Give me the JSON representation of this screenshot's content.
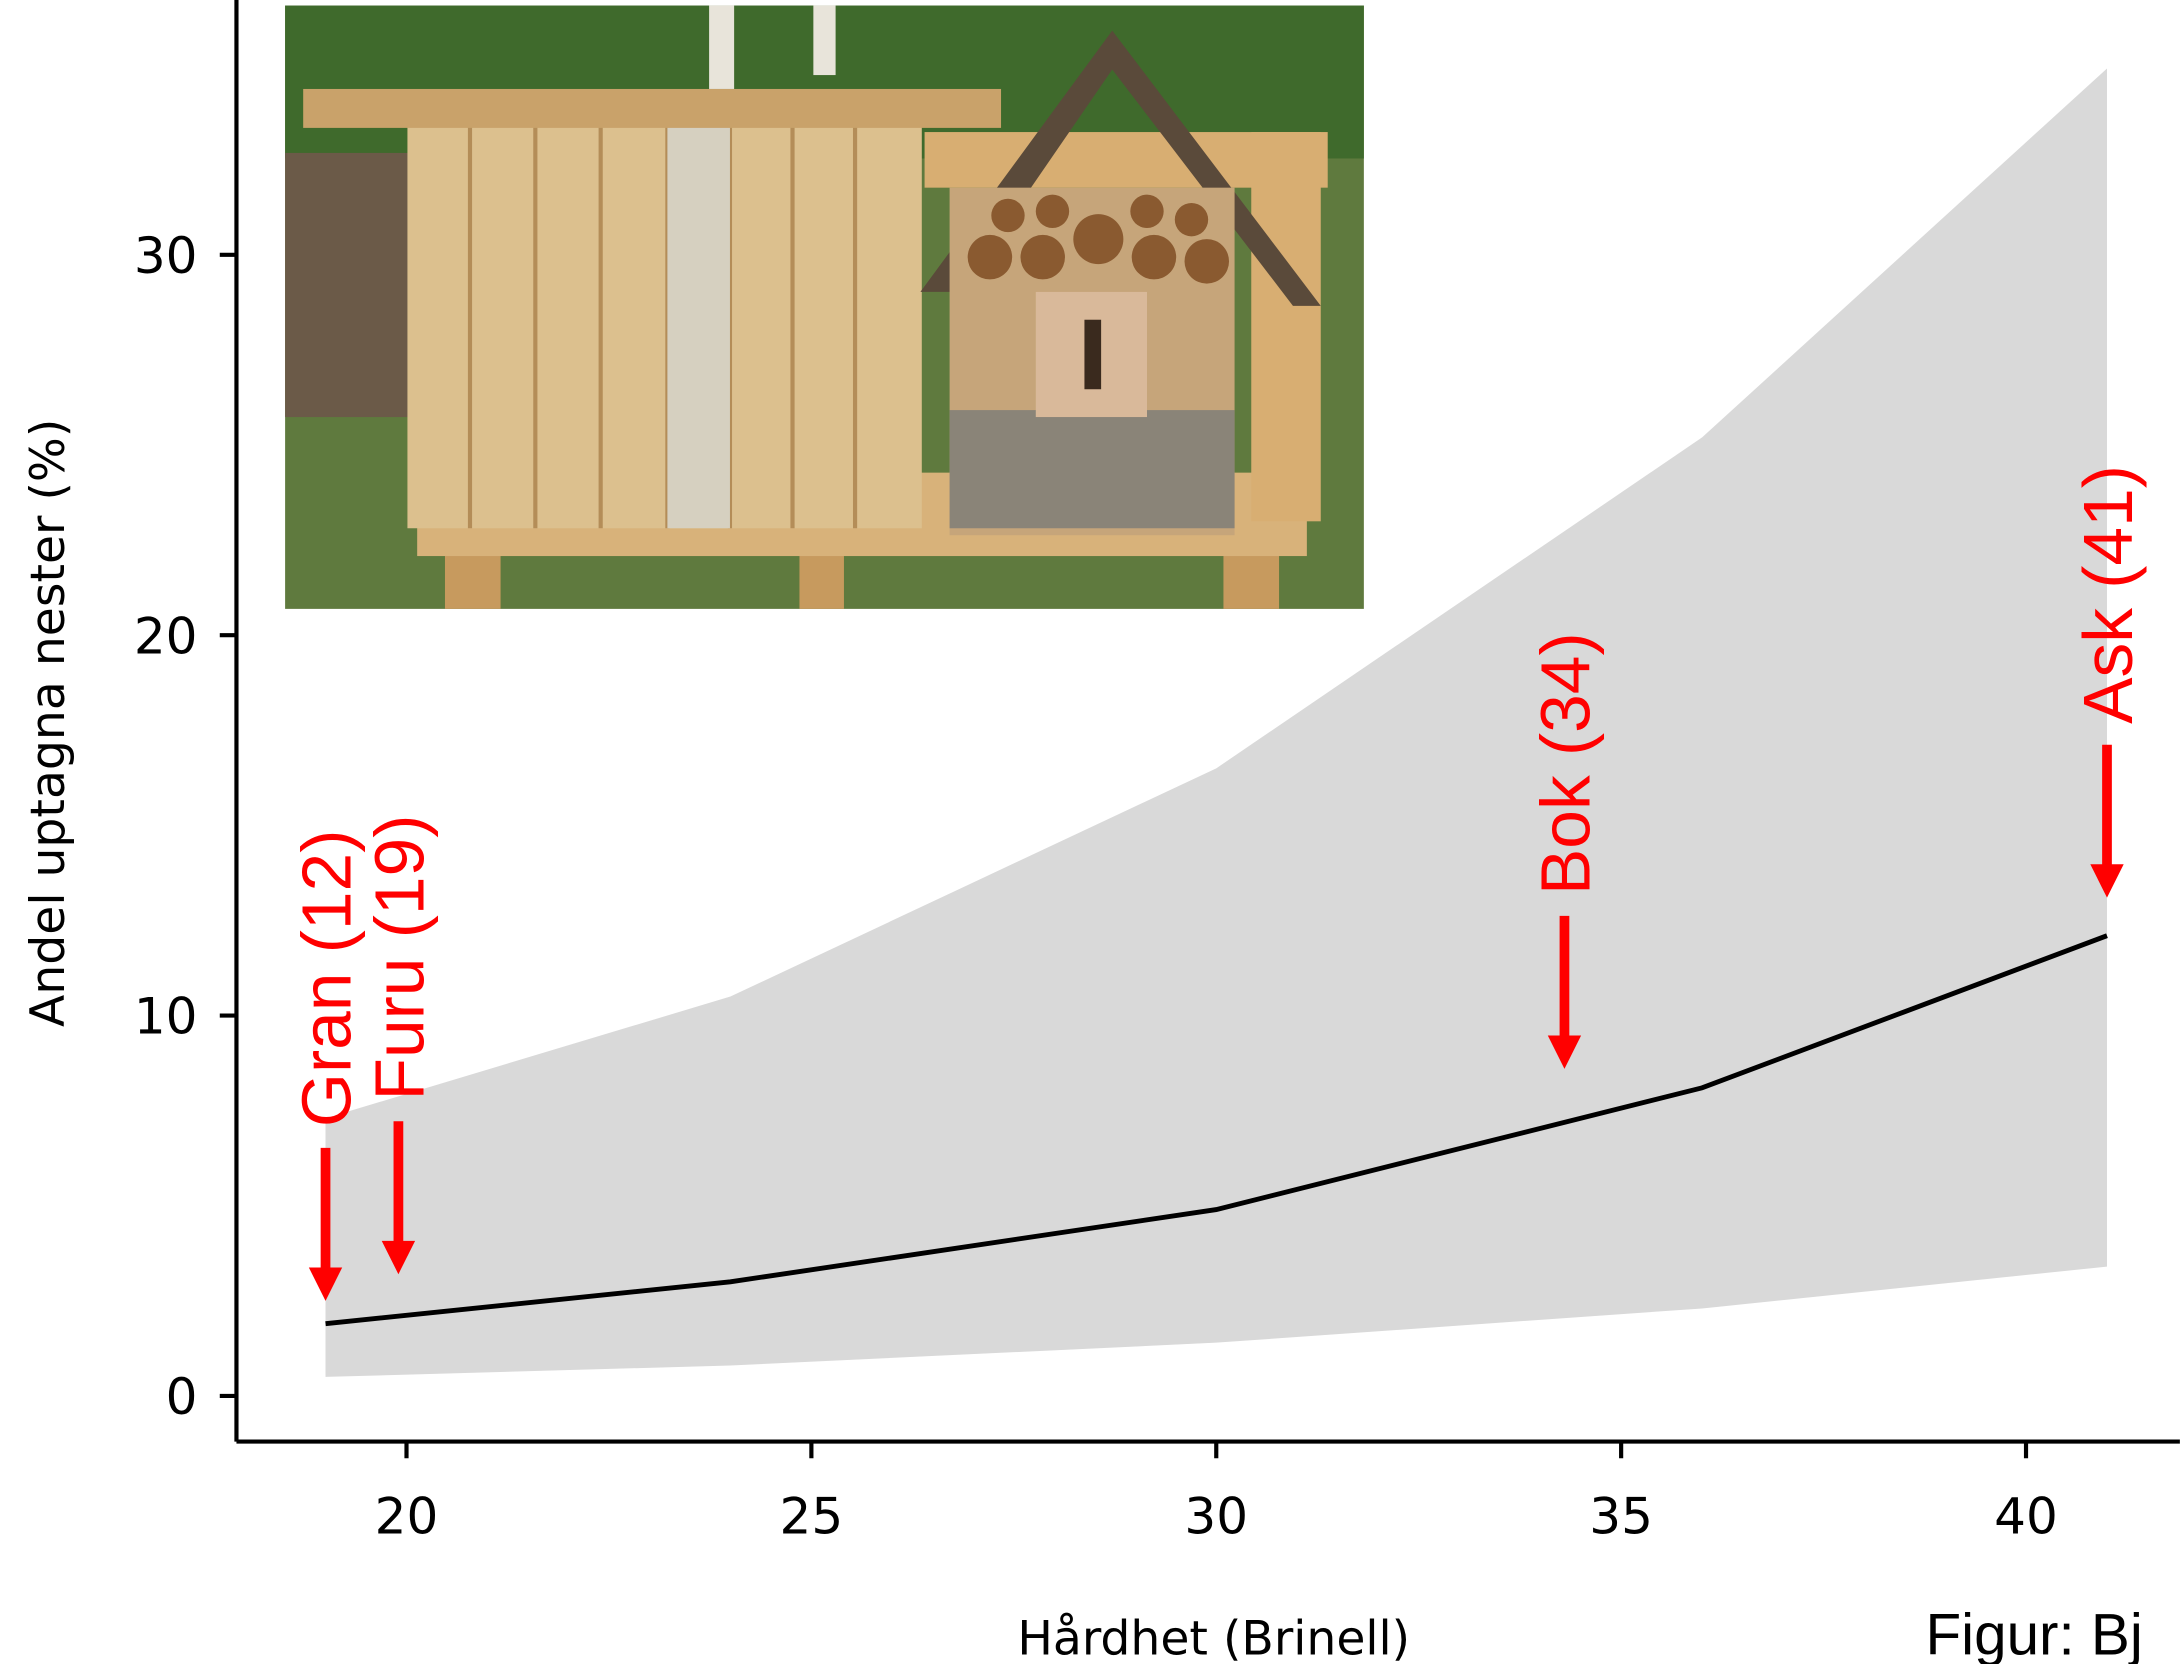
{
  "chart_data": {
    "type": "line",
    "xlabel": "Hårdhet (Brinell)",
    "ylabel": "Andel uptagna nester (%)",
    "caption": "Figur: Bj",
    "x": [
      19,
      24,
      30,
      36,
      41
    ],
    "values": [
      1.9,
      3.0,
      4.9,
      8.1,
      12.1
    ],
    "upper": [
      7.3,
      10.5,
      16.5,
      25.2,
      34.9
    ],
    "lower": [
      0.5,
      0.8,
      1.4,
      2.3,
      3.4
    ],
    "color": "#000000",
    "band_color": "#d9d9d9",
    "annotation_color": "#ff0000",
    "xlim": [
      17.9,
      41.9
    ],
    "ylim": [
      -1.2,
      36.7
    ],
    "xticks": [
      20,
      25,
      30,
      35,
      40
    ],
    "yticks": [
      0,
      10,
      20,
      30
    ],
    "annotations": [
      {
        "text": "Gran (12)",
        "x": 19,
        "y": 2.5
      },
      {
        "text": "Furu (19)",
        "x": 19.9,
        "y": 3.2
      },
      {
        "text": "Bok (34)",
        "x": 34.3,
        "y": 8.6
      },
      {
        "text": "Ask (41)",
        "x": 41,
        "y": 13.1
      }
    ]
  }
}
